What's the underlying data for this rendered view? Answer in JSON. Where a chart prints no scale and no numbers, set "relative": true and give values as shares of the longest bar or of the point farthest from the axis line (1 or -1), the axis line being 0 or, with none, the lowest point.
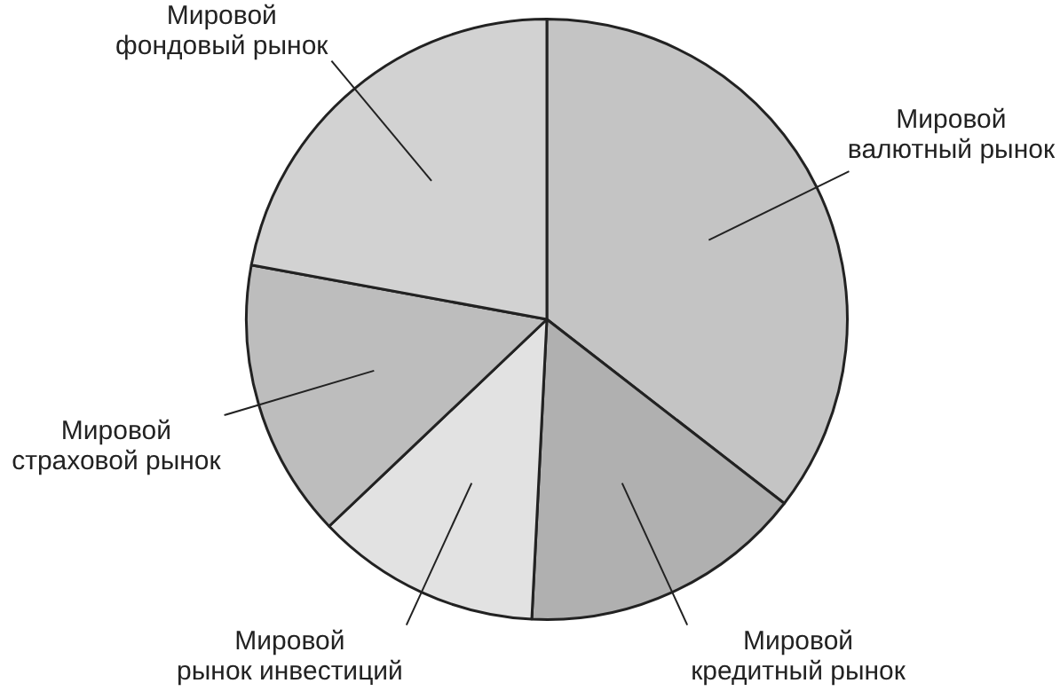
{
  "chart_data": {
    "type": "pie",
    "relative": true,
    "legend": false,
    "categories": [
      "Мировой валютный рынок",
      "Мировой кредитный рынок",
      "Мировой рынок инвестиций",
      "Мировой страховой рынок",
      "Мировой фондовый рынок"
    ],
    "values": [
      35.5,
      15.3,
      12.1,
      15.0,
      22.1
    ],
    "colors": [
      "#c4c4c4",
      "#b0b0b0",
      "#e2e2e2",
      "#bdbdbd",
      "#d2d2d2"
    ]
  }
}
